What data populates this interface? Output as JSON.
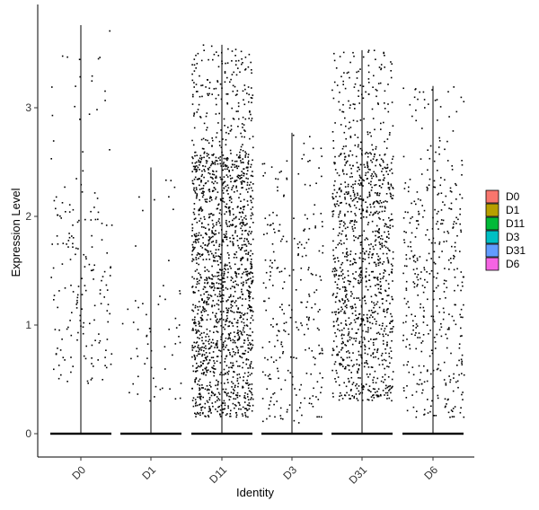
{
  "chart_data": {
    "type": "scatter",
    "subtype": "violin-jitter",
    "xlabel": "Identity",
    "ylabel": "Expression Level",
    "categories": [
      "D0",
      "D1",
      "D11",
      "D3",
      "D31",
      "D6"
    ],
    "ylim": [
      -0.2,
      3.95
    ],
    "yticks": [
      0,
      1,
      2,
      3
    ],
    "grid": false,
    "legend_position": "right",
    "legend": {
      "entries": [
        "D0",
        "D1",
        "D11",
        "D3",
        "D31",
        "D6"
      ],
      "colors": [
        "#F8766D",
        "#B79F00",
        "#00BA38",
        "#00BFC4",
        "#619CFF",
        "#F564E3"
      ]
    },
    "series": [
      {
        "category": "D0",
        "max": 3.76,
        "upper_dense": 2.3,
        "points_above_zero": 180,
        "range": [
          0.45,
          3.76
        ]
      },
      {
        "category": "D1",
        "max": 2.45,
        "upper_dense": 1.3,
        "points_above_zero": 60,
        "range": [
          0.3,
          2.45
        ]
      },
      {
        "category": "D11",
        "max": 3.58,
        "upper_dense": 2.6,
        "points_above_zero": 1700,
        "range": [
          0.15,
          3.58
        ]
      },
      {
        "category": "D3",
        "max": 2.77,
        "upper_dense": 2.0,
        "points_above_zero": 260,
        "range": [
          0.1,
          2.77
        ]
      },
      {
        "category": "D31",
        "max": 3.53,
        "upper_dense": 2.6,
        "points_above_zero": 1150,
        "range": [
          0.3,
          3.53
        ]
      },
      {
        "category": "D6",
        "max": 3.2,
        "upper_dense": 2.35,
        "points_above_zero": 420,
        "range": [
          0.15,
          3.2
        ]
      }
    ],
    "point_color": "#000000"
  }
}
